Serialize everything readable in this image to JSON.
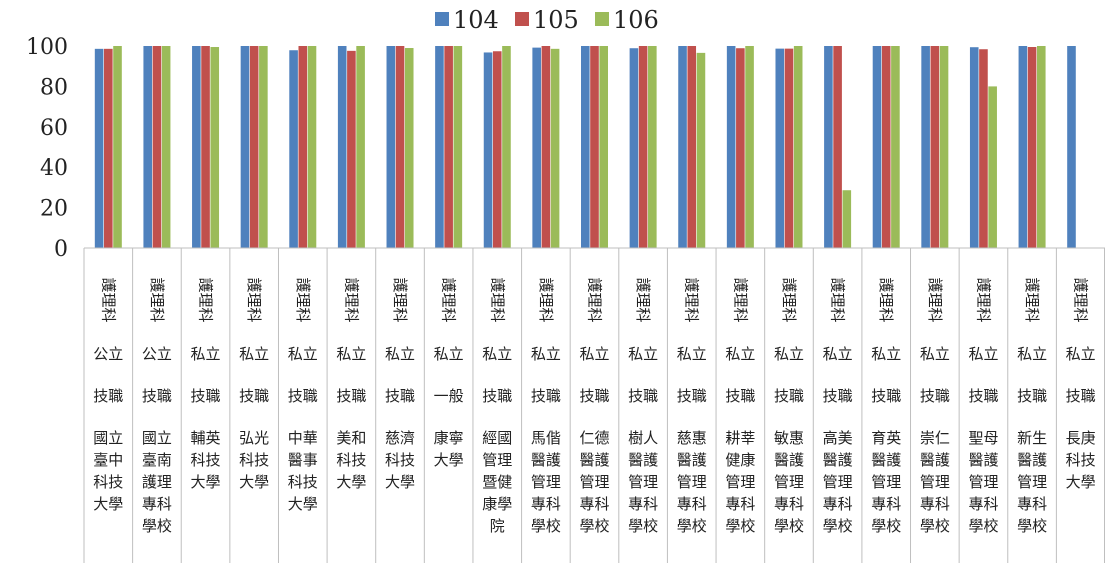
{
  "chart_data": {
    "type": "bar",
    "title": "",
    "xlabel": "",
    "ylabel": "",
    "ylim": [
      0,
      100
    ],
    "yticks": [
      0,
      20,
      40,
      60,
      80,
      100
    ],
    "grid": false,
    "legend": "top-center",
    "colors": [
      "#4F81BD",
      "#C0504D",
      "#9BBB59"
    ],
    "series": [
      {
        "name": "104",
        "values": [
          98.6,
          100,
          100,
          100,
          97.9,
          100,
          100,
          100,
          96.8,
          99.2,
          100,
          98.9,
          100,
          100,
          98.7,
          100,
          100,
          100,
          99.4,
          100,
          100
        ]
      },
      {
        "name": "105",
        "values": [
          98.6,
          100,
          100,
          100,
          100,
          97.6,
          100,
          100,
          97.4,
          100,
          100,
          100,
          100,
          98.9,
          98.7,
          100,
          100,
          100,
          98.4,
          99.5,
          null
        ]
      },
      {
        "name": "106",
        "values": [
          100,
          100,
          99.5,
          100,
          100,
          100,
          99.0,
          100,
          100,
          98.6,
          100,
          100,
          96.6,
          100,
          100,
          28.6,
          100,
          100,
          80.0,
          100,
          null
        ]
      }
    ],
    "categories": [
      {
        "dept": "護理科",
        "type": "公立",
        "level": "技職",
        "school": "國立臺中科技大學"
      },
      {
        "dept": "護理科",
        "type": "公立",
        "level": "技職",
        "school": "國立臺南護理專科學校"
      },
      {
        "dept": "護理科",
        "type": "私立",
        "level": "技職",
        "school": "輔英科技大學"
      },
      {
        "dept": "護理科",
        "type": "私立",
        "level": "技職",
        "school": "弘光科技大學"
      },
      {
        "dept": "護理科",
        "type": "私立",
        "level": "技職",
        "school": "中華醫事科技大學"
      },
      {
        "dept": "護理科",
        "type": "私立",
        "level": "技職",
        "school": "美和科技大學"
      },
      {
        "dept": "護理科",
        "type": "私立",
        "level": "技職",
        "school": "慈濟科技大學"
      },
      {
        "dept": "護理科",
        "type": "私立",
        "level": "一般",
        "school": "康寧大學"
      },
      {
        "dept": "護理科",
        "type": "私立",
        "level": "技職",
        "school": "經國管理暨健康學院"
      },
      {
        "dept": "護理科",
        "type": "私立",
        "level": "技職",
        "school": "馬偕醫護管理專科學校"
      },
      {
        "dept": "護理科",
        "type": "私立",
        "level": "技職",
        "school": "仁德醫護管理專科學校"
      },
      {
        "dept": "護理科",
        "type": "私立",
        "level": "技職",
        "school": "樹人醫護管理專科學校"
      },
      {
        "dept": "護理科",
        "type": "私立",
        "level": "技職",
        "school": "慈惠醫護管理專科學校"
      },
      {
        "dept": "護理科",
        "type": "私立",
        "level": "技職",
        "school": "耕莘健康管理專科學校"
      },
      {
        "dept": "護理科",
        "type": "私立",
        "level": "技職",
        "school": "敏惠醫護管理專科學校"
      },
      {
        "dept": "護理科",
        "type": "私立",
        "level": "技職",
        "school": "高美醫護管理專科學校"
      },
      {
        "dept": "護理科",
        "type": "私立",
        "level": "技職",
        "school": "育英醫護管理專科學校"
      },
      {
        "dept": "護理科",
        "type": "私立",
        "level": "技職",
        "school": "崇仁醫護管理專科學校"
      },
      {
        "dept": "護理科",
        "type": "私立",
        "level": "技職",
        "school": "聖母醫護管理專科學校"
      },
      {
        "dept": "護理科",
        "type": "私立",
        "level": "技職",
        "school": "新生醫護管理專科學校"
      },
      {
        "dept": "護理科",
        "type": "私立",
        "level": "技職",
        "school": "長庚科技大學"
      }
    ]
  }
}
